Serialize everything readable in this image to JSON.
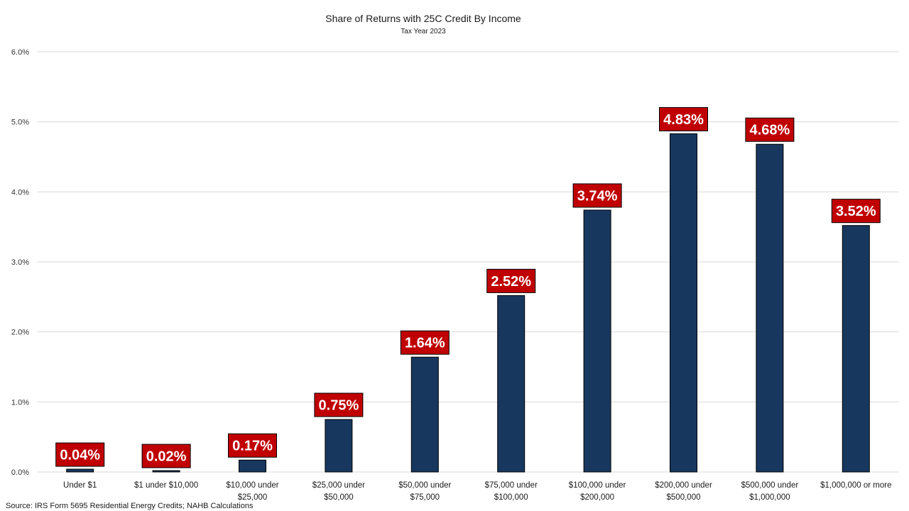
{
  "chart_data": {
    "type": "bar",
    "title": "Share of Returns with 25C Credit By Income",
    "subtitle": "Tax Year 2023",
    "categories": [
      [
        "Under $1"
      ],
      [
        "$1 under $10,000"
      ],
      [
        "$10,000 under",
        "$25,000"
      ],
      [
        "$25,000 under",
        "$50,000"
      ],
      [
        "$50,000 under",
        "$75,000"
      ],
      [
        "$75,000 under",
        "$100,000"
      ],
      [
        "$100,000 under",
        "$200,000"
      ],
      [
        "$200,000 under",
        "$500,000"
      ],
      [
        "$500,000 under",
        "$1,000,000"
      ],
      [
        "$1,000,000 or more"
      ]
    ],
    "values": [
      0.04,
      0.02,
      0.17,
      0.75,
      1.64,
      2.52,
      3.74,
      4.83,
      4.68,
      3.52
    ],
    "data_labels": [
      "0.04%",
      "0.02%",
      "0.17%",
      "0.75%",
      "1.64%",
      "2.52%",
      "3.74%",
      "4.83%",
      "4.68%",
      "3.52%"
    ],
    "ylim": [
      0,
      6
    ],
    "yticks": [
      0,
      1,
      2,
      3,
      4,
      5,
      6
    ],
    "ytick_labels": [
      "0.0%",
      "1.0%",
      "2.0%",
      "3.0%",
      "4.0%",
      "5.0%",
      "6.0%"
    ],
    "xlabel": "",
    "ylabel": "",
    "grid": true,
    "legend": "none",
    "colors": {
      "bar": "#17375e",
      "bar_outline": "#000000",
      "label_bg": "#c00000",
      "label_text": "#ffffff",
      "grid": "#d9d9d9"
    },
    "source": "Source: IRS Form 5695 Residential Energy Credits; NAHB Calculations"
  }
}
